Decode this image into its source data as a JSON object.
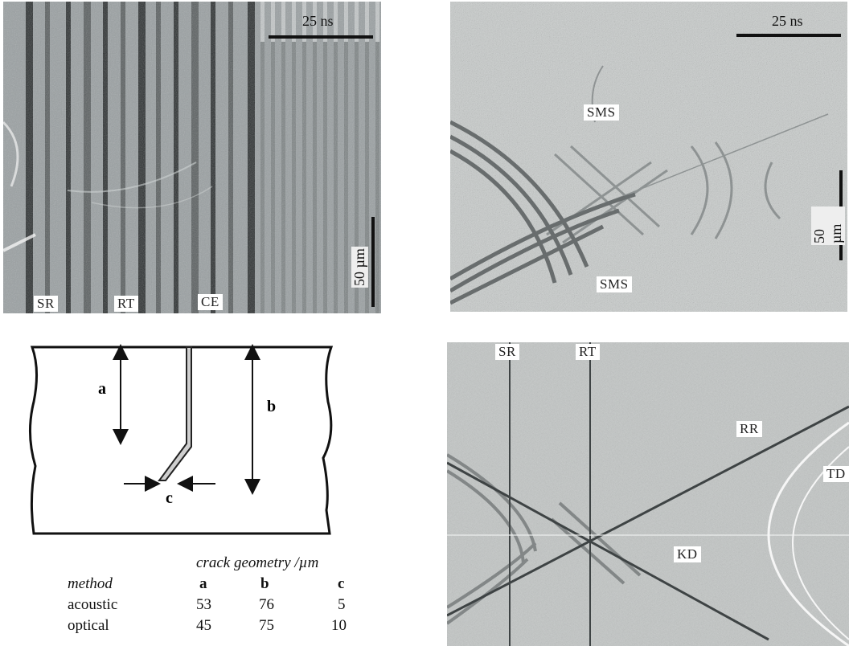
{
  "panels": {
    "top_left": {
      "time_scale": "25 ns",
      "length_scale": "50 µm",
      "labels": [
        "SR",
        "RT",
        "CE"
      ]
    },
    "top_right": {
      "time_scale": "25 ns",
      "length_scale": "50 µm",
      "labels": [
        "SMS",
        "SMS"
      ]
    },
    "bottom_right": {
      "labels": [
        "SR",
        "RT",
        "RR",
        "TD",
        "KD"
      ]
    }
  },
  "diagram": {
    "labels": {
      "a": "a",
      "b": "b",
      "c": "c"
    }
  },
  "table": {
    "title": "crack geometry /µm",
    "header": [
      "method",
      "a",
      "b",
      "c"
    ],
    "rows": [
      [
        "acoustic",
        "53",
        "76",
        "5"
      ],
      [
        "optical",
        "45",
        "75",
        "10"
      ]
    ]
  }
}
